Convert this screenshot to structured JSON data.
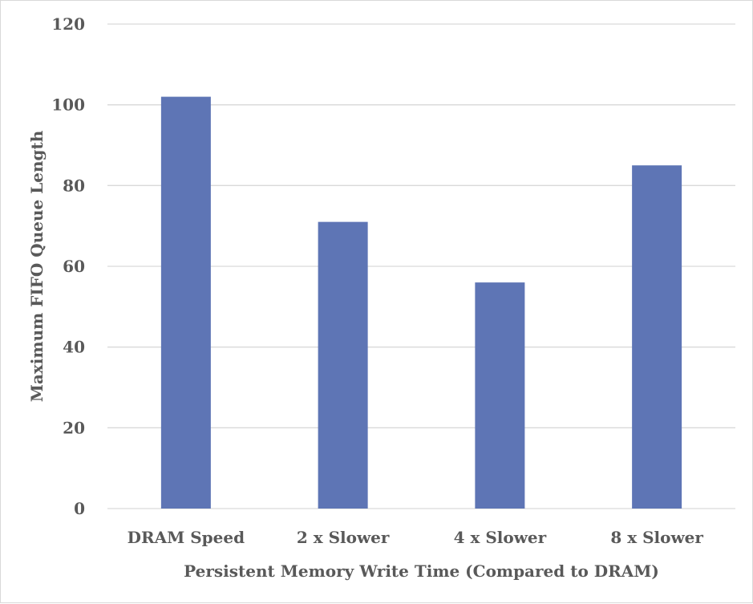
{
  "chart_data": {
    "type": "bar",
    "title": "",
    "categories": [
      "DRAM Speed",
      "2 x Slower",
      "4 x Slower",
      "8 x Slower"
    ],
    "values": [
      102,
      71,
      56,
      85
    ],
    "xlabel": "Persistent Memory Write Time (Compared to DRAM)",
    "ylabel": "Maximum FIFO Queue Length",
    "ylim": [
      0,
      120
    ],
    "yticks": [
      0,
      20,
      40,
      60,
      80,
      100,
      120
    ],
    "grid": true,
    "legend": "none",
    "colors": {
      "bar": "#5e75b5",
      "grid": "#d9d9d9",
      "text": "#595959"
    }
  }
}
